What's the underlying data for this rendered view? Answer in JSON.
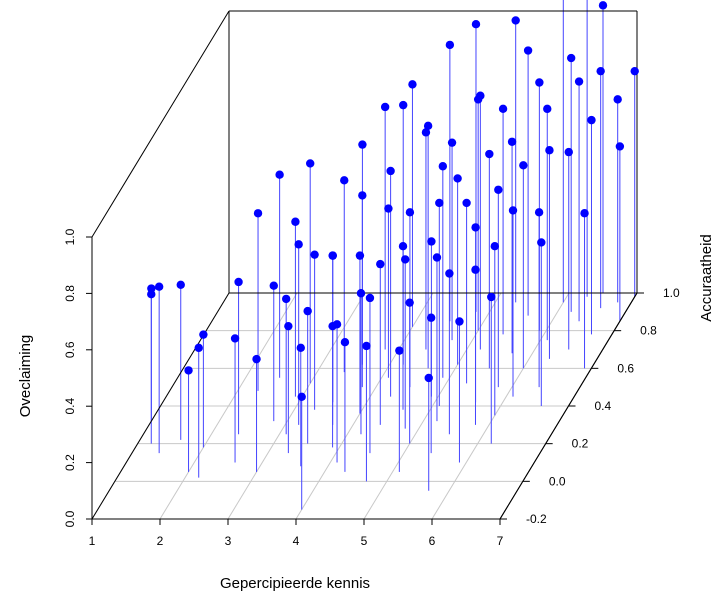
{
  "chart_data": {
    "type": "scatter",
    "subtype": "3d-scatter-with-drop-lines",
    "title": "",
    "xlabel": "Gepercipieerde kennis",
    "ylabel": "Accuraatheid",
    "zlabel": "Oveclaiming",
    "xlim": [
      1,
      7
    ],
    "ylim": [
      -0.2,
      1.0
    ],
    "zlim": [
      0.0,
      1.0
    ],
    "x_ticks": [
      "1",
      "2",
      "3",
      "4",
      "5",
      "6",
      "7"
    ],
    "y_ticks": [
      "-0.2",
      "0.0",
      "0.2",
      "0.4",
      "0.6",
      "0.8",
      "1.0"
    ],
    "z_ticks": [
      "0.0",
      "0.2",
      "0.4",
      "0.6",
      "0.8",
      "1.0"
    ],
    "grid": true,
    "colors": {
      "points": "#0000ff",
      "drop_lines": "#4444ff",
      "box": "#000000",
      "grid": "#c8c8c8"
    },
    "series": [
      {
        "points": [
          {
            "x": 1.0,
            "y": 0.32,
            "z": 0.47
          },
          {
            "x": 1.2,
            "y": 0.2,
            "z": 0.53
          },
          {
            "x": 1.4,
            "y": 0.15,
            "z": 0.59
          },
          {
            "x": 1.6,
            "y": 0.22,
            "z": 0.55
          },
          {
            "x": 2.0,
            "y": 0.18,
            "z": 0.4
          },
          {
            "x": 2.0,
            "y": 0.05,
            "z": 0.36
          },
          {
            "x": 2.2,
            "y": 0.02,
            "z": 0.46
          },
          {
            "x": 2.3,
            "y": 0.48,
            "z": 0.63
          },
          {
            "x": 2.4,
            "y": 0.25,
            "z": 0.54
          },
          {
            "x": 2.5,
            "y": 0.55,
            "z": 0.72
          },
          {
            "x": 2.6,
            "y": 0.1,
            "z": 0.44
          },
          {
            "x": 2.8,
            "y": 0.32,
            "z": 0.48
          },
          {
            "x": 2.9,
            "y": 0.45,
            "z": 0.62
          },
          {
            "x": 3.0,
            "y": 0.52,
            "z": 0.78
          },
          {
            "x": 3.0,
            "y": 0.05,
            "z": 0.4
          },
          {
            "x": 3.1,
            "y": 0.25,
            "z": 0.48
          },
          {
            "x": 3.2,
            "y": 0.3,
            "z": 0.64
          },
          {
            "x": 3.3,
            "y": 0.15,
            "z": 0.45
          },
          {
            "x": 3.3,
            "y": 0.38,
            "z": 0.55
          },
          {
            "x": 3.4,
            "y": 0.58,
            "z": 0.68
          },
          {
            "x": 3.5,
            "y": 0.2,
            "z": 0.47
          },
          {
            "x": 3.5,
            "y": 0.42,
            "z": 0.52
          },
          {
            "x": 3.6,
            "y": 0.62,
            "z": 0.78
          },
          {
            "x": 3.6,
            "y": 0.08,
            "z": 0.42
          },
          {
            "x": 3.7,
            "y": 0.3,
            "z": 0.6
          },
          {
            "x": 3.8,
            "y": 0.7,
            "z": 0.86
          },
          {
            "x": 3.8,
            "y": 0.5,
            "z": 0.68
          },
          {
            "x": 3.9,
            "y": 0.18,
            "z": 0.43
          },
          {
            "x": 4.0,
            "y": 0.82,
            "z": 0.86
          },
          {
            "x": 4.0,
            "y": -0.15,
            "z": 0.4
          },
          {
            "x": 4.0,
            "y": 0.36,
            "z": 0.56
          },
          {
            "x": 4.1,
            "y": 0.55,
            "z": 0.6
          },
          {
            "x": 4.1,
            "y": 0.1,
            "z": 0.49
          },
          {
            "x": 4.2,
            "y": 0.62,
            "z": 0.92
          },
          {
            "x": 4.2,
            "y": 0.25,
            "z": 0.5
          },
          {
            "x": 4.3,
            "y": 0.45,
            "z": 0.8
          },
          {
            "x": 4.3,
            "y": 0.05,
            "z": 0.46
          },
          {
            "x": 4.4,
            "y": 0.7,
            "z": 0.77
          },
          {
            "x": 4.4,
            "y": 0.3,
            "z": 0.57
          },
          {
            "x": 4.5,
            "y": 0.85,
            "z": 0.98
          },
          {
            "x": 4.5,
            "y": 0.15,
            "z": 0.55
          },
          {
            "x": 4.5,
            "y": 0.5,
            "z": 0.62
          },
          {
            "x": 4.6,
            "y": 0.6,
            "z": 0.86
          },
          {
            "x": 4.6,
            "y": 0.38,
            "z": 0.58
          },
          {
            "x": 4.7,
            "y": 0.75,
            "z": 0.7
          },
          {
            "x": 4.7,
            "y": 0.0,
            "z": 0.48
          },
          {
            "x": 4.8,
            "y": 0.9,
            "z": 1.02
          },
          {
            "x": 4.8,
            "y": 0.28,
            "z": 0.6
          },
          {
            "x": 4.9,
            "y": 0.55,
            "z": 0.75
          },
          {
            "x": 4.9,
            "y": 0.45,
            "z": 0.55
          },
          {
            "x": 5.0,
            "y": 0.8,
            "z": 0.82
          },
          {
            "x": 5.0,
            "y": 0.2,
            "z": 0.5
          },
          {
            "x": 5.0,
            "y": 0.62,
            "z": 0.66
          },
          {
            "x": 5.1,
            "y": 0.4,
            "z": 0.72
          },
          {
            "x": 5.1,
            "y": 0.05,
            "z": 0.43
          },
          {
            "x": 5.2,
            "y": 0.7,
            "z": 0.9
          },
          {
            "x": 5.2,
            "y": 0.32,
            "z": 0.58
          },
          {
            "x": 5.3,
            "y": 0.95,
            "z": 1.0
          },
          {
            "x": 5.3,
            "y": 0.52,
            "z": 0.64
          },
          {
            "x": 5.4,
            "y": 0.15,
            "z": 0.48
          },
          {
            "x": 5.4,
            "y": 0.78,
            "z": 0.8
          },
          {
            "x": 5.5,
            "y": 0.6,
            "z": 0.76
          },
          {
            "x": 5.5,
            "y": 0.25,
            "z": 0.57
          },
          {
            "x": 5.6,
            "y": 0.88,
            "z": 0.94
          },
          {
            "x": 5.6,
            "y": 0.42,
            "z": 0.62
          },
          {
            "x": 5.7,
            "y": -0.05,
            "z": 0.4
          },
          {
            "x": 5.7,
            "y": 0.68,
            "z": 0.75
          },
          {
            "x": 5.8,
            "y": 0.5,
            "z": 0.7
          },
          {
            "x": 5.8,
            "y": 0.3,
            "z": 0.55
          },
          {
            "x": 5.9,
            "y": 0.8,
            "z": 0.88
          },
          {
            "x": 5.9,
            "y": 0.1,
            "z": 0.5
          },
          {
            "x": 6.0,
            "y": 0.95,
            "z": 1.2
          },
          {
            "x": 6.0,
            "y": 0.6,
            "z": 0.72
          },
          {
            "x": 6.0,
            "y": 0.35,
            "z": 0.6
          },
          {
            "x": 6.1,
            "y": 0.75,
            "z": 0.82
          },
          {
            "x": 6.1,
            "y": 0.45,
            "z": 0.66
          },
          {
            "x": 6.2,
            "y": 0.9,
            "z": 0.9
          },
          {
            "x": 6.2,
            "y": 0.2,
            "z": 0.52
          },
          {
            "x": 6.3,
            "y": 0.65,
            "z": 0.74
          },
          {
            "x": 6.3,
            "y": 0.98,
            "z": 1.1
          },
          {
            "x": 6.4,
            "y": 0.5,
            "z": 0.62
          },
          {
            "x": 6.4,
            "y": 0.85,
            "z": 0.85
          },
          {
            "x": 6.5,
            "y": 0.7,
            "z": 0.7
          },
          {
            "x": 6.5,
            "y": 1.0,
            "z": 1.02
          },
          {
            "x": 6.6,
            "y": 0.4,
            "z": 0.58
          },
          {
            "x": 6.6,
            "y": 0.92,
            "z": 0.84
          },
          {
            "x": 6.7,
            "y": 0.78,
            "z": 0.76
          },
          {
            "x": 6.8,
            "y": 0.95,
            "z": 0.72
          },
          {
            "x": 6.9,
            "y": 0.6,
            "z": 0.55
          },
          {
            "x": 7.0,
            "y": 0.98,
            "z": 0.8
          },
          {
            "x": 7.0,
            "y": 0.85,
            "z": 0.62
          }
        ]
      }
    ]
  }
}
